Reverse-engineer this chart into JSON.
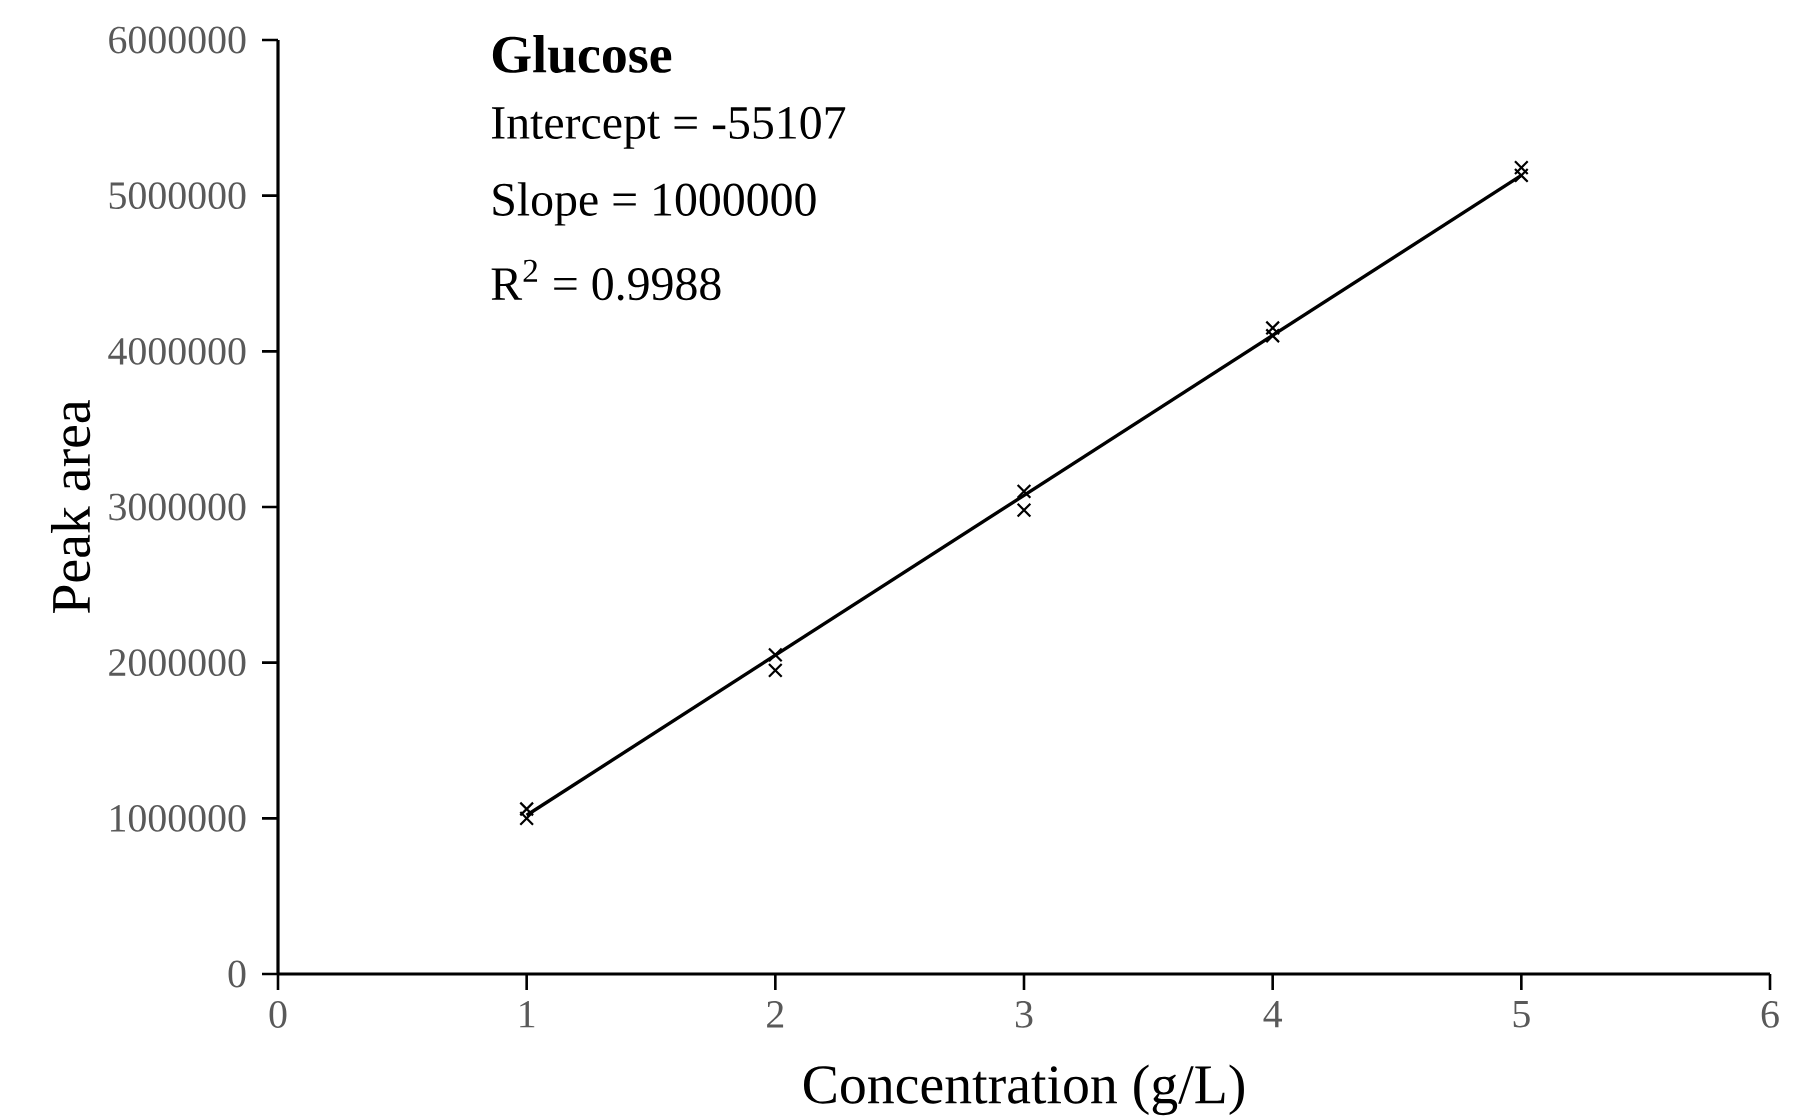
{
  "chart_data": {
    "type": "scatter",
    "title": "Glucose",
    "xlabel": "Concentration (g/L)",
    "ylabel": "Peak area",
    "annotations": [
      "Intercept = -55107",
      "Slope = 1000000",
      "R$^{2}$ = 0.9988"
    ],
    "xlim": [
      0,
      6
    ],
    "ylim": [
      0,
      6000000
    ],
    "xticks": [
      0,
      1,
      2,
      3,
      4,
      5,
      6
    ],
    "yticks": [
      0,
      1000000,
      2000000,
      3000000,
      4000000,
      5000000,
      6000000
    ],
    "series": [
      {
        "marker": "cross",
        "color": "#000000",
        "x": [
          1,
          1,
          2,
          2,
          3,
          3,
          4,
          4,
          5,
          5
        ],
        "values": [
          1060000,
          1000000,
          2050000,
          1950000,
          3100000,
          2980000,
          4150000,
          4100000,
          5180000,
          5130000
        ]
      },
      {
        "type": "line",
        "marker": "none",
        "color": "#000000",
        "x": [
          1,
          5
        ],
        "values": [
          1020000,
          5130000
        ]
      }
    ]
  }
}
